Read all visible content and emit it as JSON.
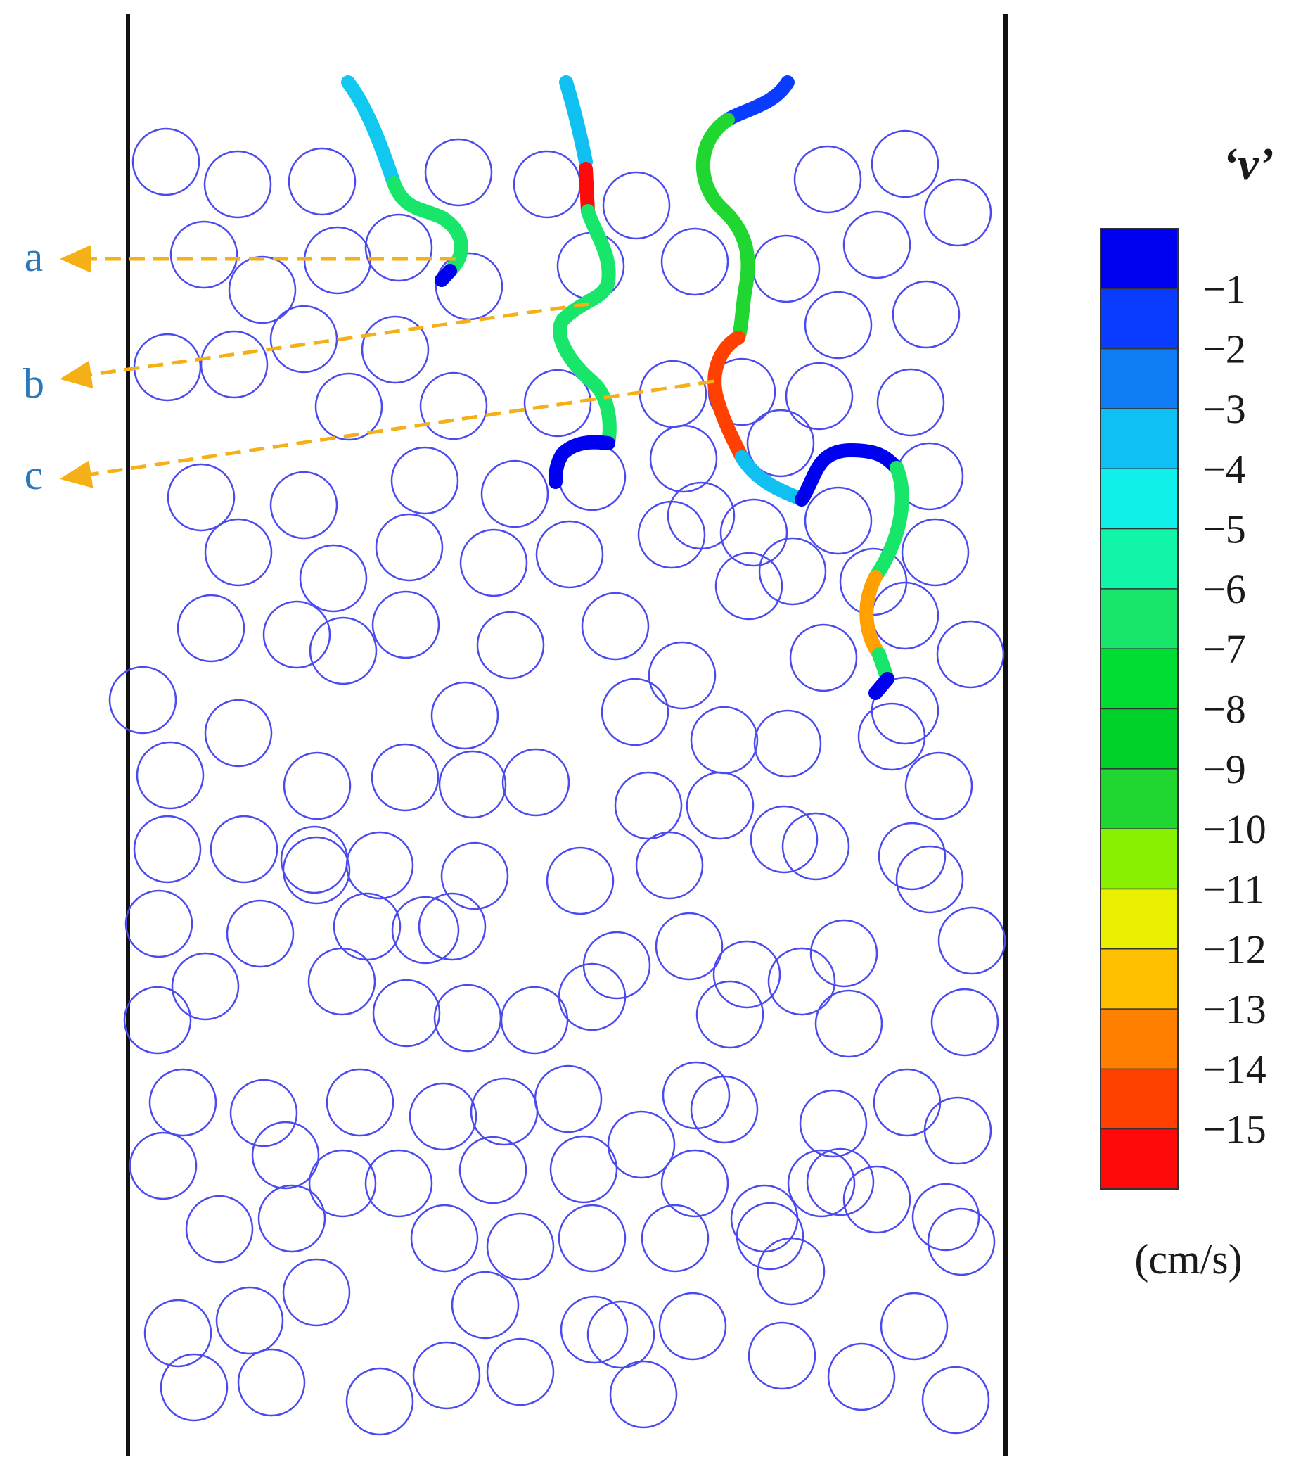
{
  "labels": {
    "a": "a",
    "b": "b",
    "c": "c"
  },
  "colorbar": {
    "title": "‘v’",
    "unit": "(cm/s)",
    "ticks": [
      "−1",
      "−2",
      "−3",
      "−4",
      "−5",
      "−6",
      "−7",
      "−8",
      "−9",
      "−10",
      "−11",
      "−12",
      "−13",
      "−14",
      "−15"
    ],
    "colors": [
      "#0000f0",
      "#0a3cff",
      "#0f7cf5",
      "#0fc0f5",
      "#10f0ea",
      "#10f5a8",
      "#18e66a",
      "#00dd33",
      "#00d22a",
      "#20d630",
      "#88f000",
      "#e8f000",
      "#ffc000",
      "#ff8000",
      "#ff4000",
      "#ff0a0a"
    ]
  },
  "colors": {
    "wall": "#111111",
    "particle": "#4a4af0",
    "arrow": "#f5b018"
  }
}
